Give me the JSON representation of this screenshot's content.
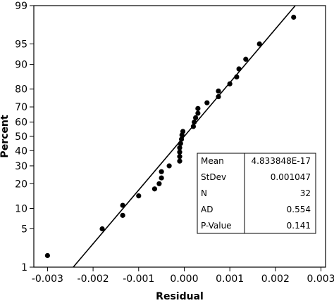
{
  "chart_data": {
    "type": "scatter",
    "title": "",
    "xlabel": "Residual",
    "ylabel": "Percent",
    "xlim": [
      -0.0033,
      0.0031
    ],
    "ylim_percent": [
      1,
      99
    ],
    "y_scale": "normal-probability",
    "grid": false,
    "x_ticks": [
      -0.003,
      -0.002,
      -0.001,
      0.0,
      0.001,
      0.002,
      0.003
    ],
    "x_tick_labels": [
      "-0.003",
      "-0.002",
      "-0.001",
      "0.000",
      "0.001",
      "0.002",
      "0.003"
    ],
    "y_ticks": [
      1,
      5,
      10,
      20,
      30,
      40,
      50,
      60,
      70,
      80,
      90,
      95,
      99
    ],
    "y_tick_labels": [
      "1",
      "5",
      "10",
      "20",
      "30",
      "40",
      "50",
      "60",
      "70",
      "80",
      "90",
      "95",
      "99"
    ],
    "fit_line": {
      "mean": 0.0,
      "stdev": 0.001047
    },
    "points": [
      {
        "x": -0.003,
        "y": 1.7
      },
      {
        "x": -0.0018,
        "y": 5.0
      },
      {
        "x": -0.00135,
        "y": 8.0
      },
      {
        "x": -0.00135,
        "y": 11.0
      },
      {
        "x": -0.001,
        "y": 14.5
      },
      {
        "x": -0.00065,
        "y": 17.5
      },
      {
        "x": -0.00055,
        "y": 20.0
      },
      {
        "x": -0.0005,
        "y": 23.0
      },
      {
        "x": -0.0005,
        "y": 26.5
      },
      {
        "x": -0.00033,
        "y": 30.0
      },
      {
        "x": -0.0001,
        "y": 33.0
      },
      {
        "x": -0.0001,
        "y": 36.0
      },
      {
        "x": -0.0001,
        "y": 39.0
      },
      {
        "x": -0.0001,
        "y": 42.0
      },
      {
        "x": -8e-05,
        "y": 45.0
      },
      {
        "x": -6e-05,
        "y": 48.0
      },
      {
        "x": -5e-05,
        "y": 51.0
      },
      {
        "x": -3e-05,
        "y": 53.5
      },
      {
        "x": 0.0002,
        "y": 57.0
      },
      {
        "x": 0.00022,
        "y": 60.0
      },
      {
        "x": 0.00025,
        "y": 63.0
      },
      {
        "x": 0.0003,
        "y": 66.0
      },
      {
        "x": 0.0003,
        "y": 69.0
      },
      {
        "x": 0.0005,
        "y": 72.5
      },
      {
        "x": 0.00075,
        "y": 76.0
      },
      {
        "x": 0.00075,
        "y": 79.0
      },
      {
        "x": 0.001,
        "y": 82.5
      },
      {
        "x": 0.00115,
        "y": 85.5
      },
      {
        "x": 0.0012,
        "y": 88.5
      },
      {
        "x": 0.00135,
        "y": 91.5
      },
      {
        "x": 0.00165,
        "y": 95.0
      },
      {
        "x": 0.0024,
        "y": 98.3
      }
    ]
  },
  "stats": {
    "rows": [
      {
        "label": "Mean",
        "value": "4.833848E-17"
      },
      {
        "label": "StDev",
        "value": "0.001047"
      },
      {
        "label": "N",
        "value": "32"
      },
      {
        "label": "AD",
        "value": "0.554"
      },
      {
        "label": "P-Value",
        "value": "0.141"
      }
    ]
  },
  "colors": {
    "marker": "#000000",
    "line": "#000000",
    "axis": "#000000"
  }
}
